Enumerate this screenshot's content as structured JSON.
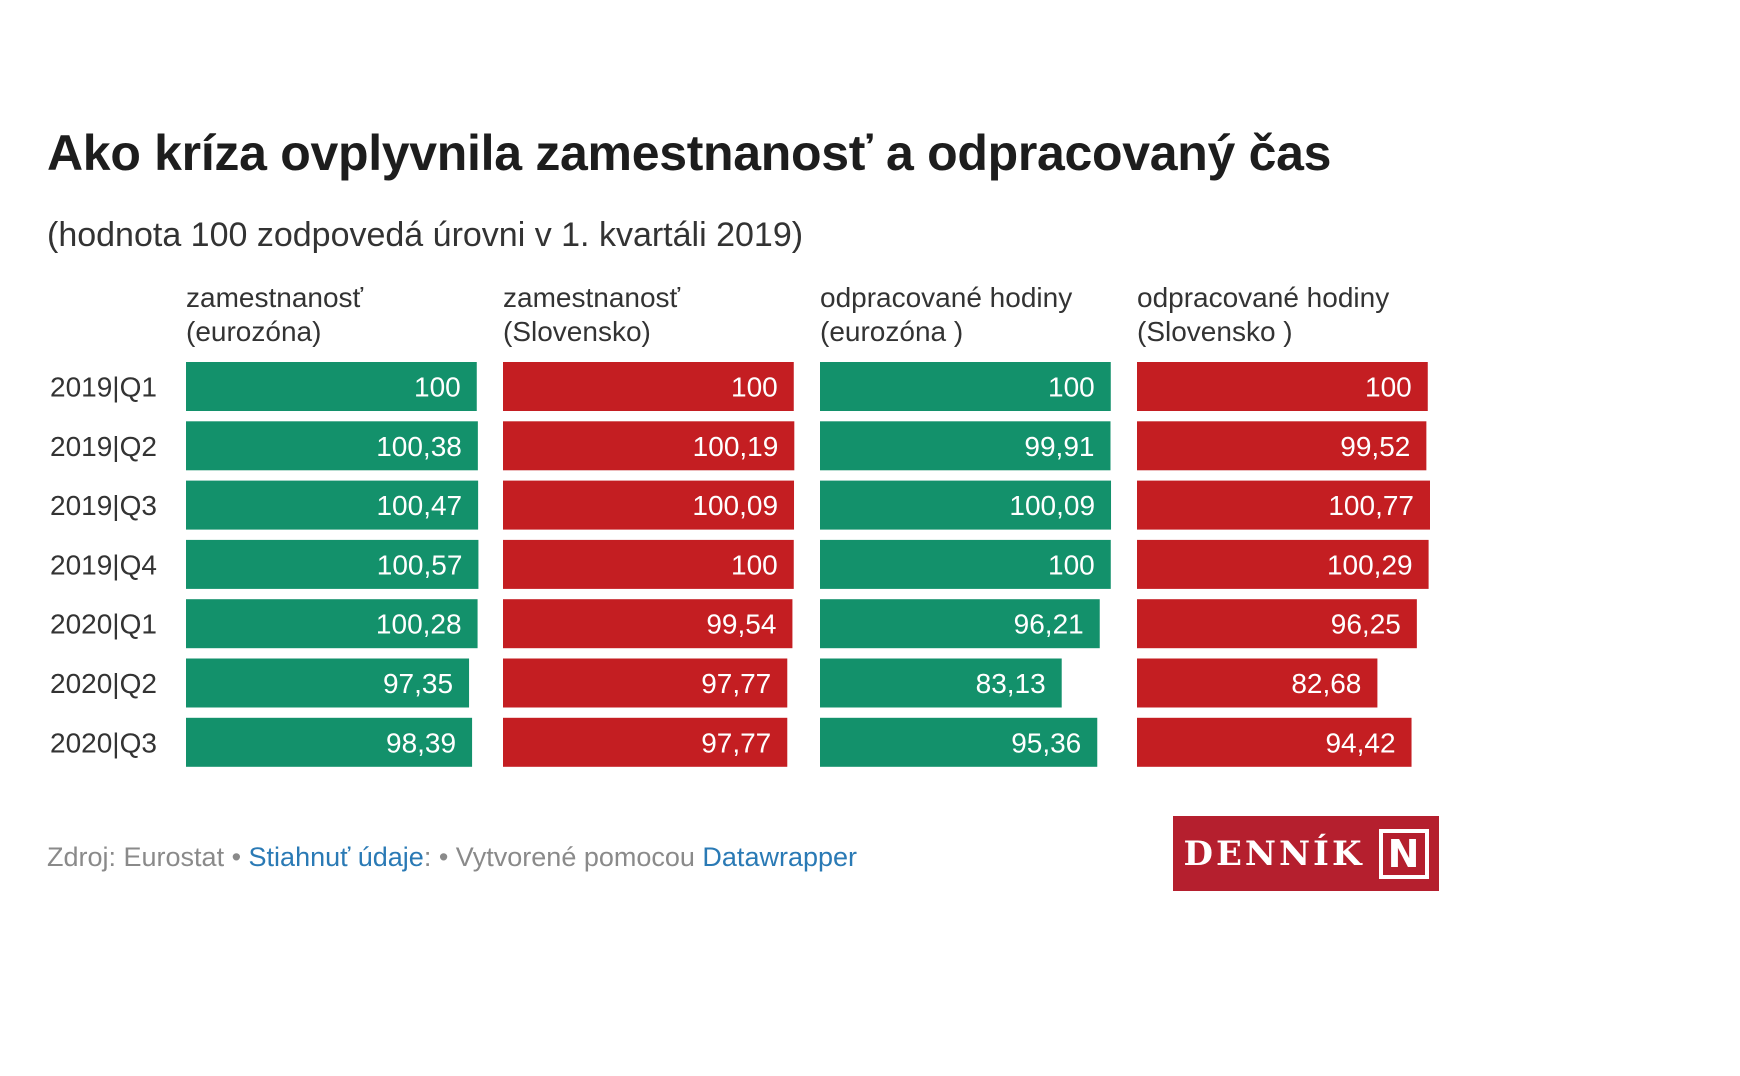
{
  "chart_data": {
    "type": "table",
    "title": "Ako kríza ovplyvnila zamestnanosť a odpracovaný čas",
    "subtitle": "(hodnota 100 zodpovedá úrovni v 1. kvartáli 2019)",
    "categories": [
      "2019|Q1",
      "2019|Q2",
      "2019|Q3",
      "2019|Q4",
      "2020|Q1",
      "2020|Q2",
      "2020|Q3"
    ],
    "series": [
      {
        "header": [
          "zamestnanosť",
          "(eurozóna)"
        ],
        "color": "#13916b",
        "values": [
          100,
          100.38,
          100.47,
          100.57,
          100.28,
          97.35,
          98.39
        ],
        "labels": [
          "100",
          "100,38",
          "100,47",
          "100,57",
          "100,28",
          "97,35",
          "98,39"
        ]
      },
      {
        "header": [
          "zamestnanosť",
          "(Slovensko)"
        ],
        "color": "#c41e22",
        "values": [
          100,
          100.19,
          100.09,
          100,
          99.54,
          97.77,
          97.77
        ],
        "labels": [
          "100",
          "100,19",
          "100,09",
          "100",
          "99,54",
          "97,77",
          "97,77"
        ]
      },
      {
        "header": [
          "odpracované hodiny",
          "(eurozóna )"
        ],
        "color": "#13916b",
        "values": [
          100,
          99.91,
          100.09,
          100,
          96.21,
          83.13,
          95.36
        ],
        "labels": [
          "100",
          "99,91",
          "100,09",
          "100",
          "96,21",
          "83,13",
          "95,36"
        ]
      },
      {
        "header": [
          "odpracované hodiny",
          "(Slovensko )"
        ],
        "color": "#c41e22",
        "values": [
          100,
          99.52,
          100.77,
          100.29,
          96.25,
          82.68,
          94.42
        ],
        "labels": [
          "100",
          "99,52",
          "100,77",
          "100,29",
          "96,25",
          "82,68",
          "94,42"
        ]
      }
    ],
    "xlim": [
      0,
      100.77
    ]
  },
  "footer": {
    "source": "Zdroj: Eurostat",
    "sep1": " • ",
    "download_link": "Stiahnuť údaje",
    "after_download": ": • Vytvorené pomocou ",
    "tool_link": "Datawrapper"
  },
  "logo": {
    "text": "DENNÍK",
    "mark": "N"
  }
}
